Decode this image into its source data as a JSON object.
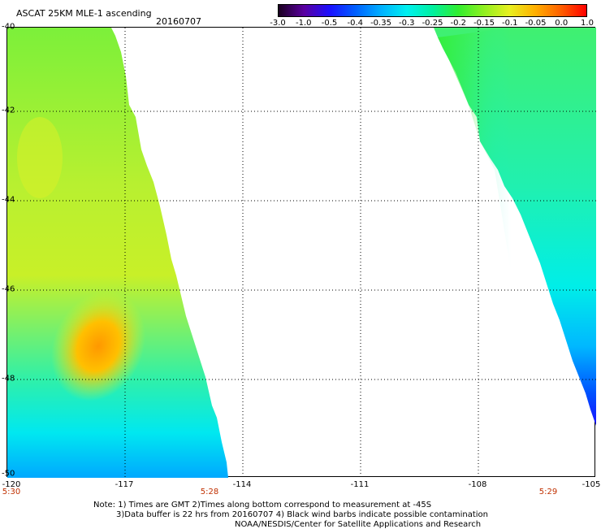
{
  "header": {
    "title": "ASCAT 25KM MLE-1 ascending",
    "date": "20160707"
  },
  "colorbar": {
    "labels": [
      "-3.0",
      "-1.0",
      "-0.5",
      "-0.4",
      "-0.35",
      "-0.3",
      "-0.25",
      "-0.2",
      "-0.15",
      "-0.1",
      "-0.05",
      "0.0",
      "1.0"
    ],
    "colors": [
      "#1a0020",
      "#5a00a0",
      "#1a10ff",
      "#0060ff",
      "#00b0ff",
      "#00f0f0",
      "#00f0a0",
      "#30ee30",
      "#90f020",
      "#e8f020",
      "#ffb000",
      "#ff6000",
      "#ff0000"
    ]
  },
  "axes": {
    "y_ticks": [
      "-40",
      "-42",
      "-44",
      "-46",
      "-48",
      "-50"
    ],
    "x_ticks": [
      "-120",
      "-117",
      "-114",
      "-111",
      "-108",
      "-105"
    ]
  },
  "times": [
    "5:30",
    "5:28",
    "5:29"
  ],
  "notes": {
    "line1": "Note: 1) Times are GMT 2)Times along bottom correspond to measurement at -45S",
    "line2": "3)Data buffer is 22 hrs from 20160707 4) Black wind barbs indicate possible contamination",
    "line3": "NOAA/NESDIS/Center for Satellite Applications and Research"
  },
  "swaths": {
    "left": "mostly green/yellow with orange core near -47S -118W, cyan/blue toward -50S",
    "right": "cyan/green with blue toward -49S"
  }
}
